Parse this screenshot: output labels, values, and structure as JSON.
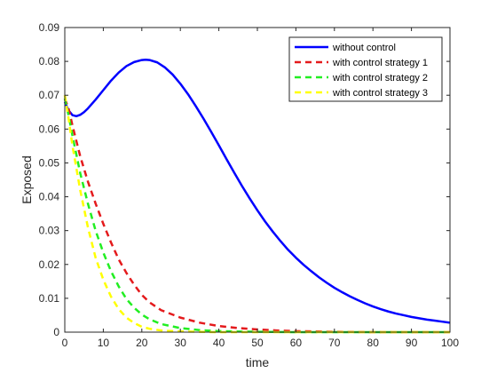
{
  "chart_data": {
    "type": "line",
    "xlabel": "time",
    "ylabel": "Exposed",
    "xlim": [
      0,
      100
    ],
    "ylim": [
      0,
      0.09
    ],
    "xticks": [
      0,
      10,
      20,
      30,
      40,
      50,
      60,
      70,
      80,
      90,
      100
    ],
    "yticks": [
      0,
      0.01,
      0.02,
      0.03,
      0.04,
      0.05,
      0.06,
      0.07,
      0.08,
      0.09
    ],
    "xtick_labels": [
      "0",
      "10",
      "20",
      "30",
      "40",
      "50",
      "60",
      "70",
      "80",
      "90",
      "100"
    ],
    "ytick_labels": [
      "0",
      "0.01",
      "0.02",
      "0.03",
      "0.04",
      "0.05",
      "0.06",
      "0.07",
      "0.08",
      "0.09"
    ],
    "grid": false,
    "legend_position": "top-right",
    "series": [
      {
        "name": "without control",
        "color": "#0000FF",
        "style": "solid",
        "x": [
          0,
          1,
          2,
          3,
          4,
          5,
          6,
          8,
          10,
          12,
          14,
          16,
          18,
          20,
          21,
          22,
          24,
          26,
          28,
          30,
          32,
          34,
          36,
          38,
          40,
          42,
          44,
          46,
          48,
          50,
          52,
          54,
          56,
          58,
          60,
          62,
          64,
          66,
          68,
          70,
          72,
          74,
          76,
          78,
          80,
          82,
          84,
          86,
          88,
          90,
          92,
          94,
          96,
          98,
          100
        ],
        "y": [
          0.068,
          0.0655,
          0.0641,
          0.0638,
          0.0642,
          0.065,
          0.0661,
          0.0687,
          0.0715,
          0.0743,
          0.0767,
          0.0786,
          0.0798,
          0.0804,
          0.0805,
          0.0804,
          0.0797,
          0.0782,
          0.0761,
          0.0734,
          0.0703,
          0.0668,
          0.0631,
          0.0592,
          0.0552,
          0.0511,
          0.0471,
          0.0432,
          0.0395,
          0.036,
          0.0327,
          0.0297,
          0.0269,
          0.0243,
          0.022,
          0.0199,
          0.018,
          0.0162,
          0.0146,
          0.0131,
          0.0118,
          0.0106,
          0.0095,
          0.0085,
          0.0076,
          0.0068,
          0.0061,
          0.0055,
          0.005,
          0.0045,
          0.0041,
          0.0037,
          0.0034,
          0.0031,
          0.0028
        ]
      },
      {
        "name": "with control strategy 1",
        "color": "#E41A1C",
        "style": "dashed",
        "x": [
          0,
          1,
          2,
          4,
          6,
          8,
          10,
          12,
          14,
          16,
          18,
          20,
          22,
          25,
          30,
          35,
          40,
          45,
          50,
          55,
          60,
          70,
          80,
          90,
          100
        ],
        "y": [
          0.069,
          0.066,
          0.061,
          0.052,
          0.0445,
          0.038,
          0.032,
          0.0265,
          0.0215,
          0.0175,
          0.014,
          0.011,
          0.0088,
          0.0065,
          0.0043,
          0.0028,
          0.0018,
          0.0012,
          0.0008,
          0.0005,
          0.0003,
          0.0001,
          0.0,
          0.0,
          0.0
        ]
      },
      {
        "name": "with control strategy 2",
        "color": "#22EE22",
        "style": "dashed",
        "x": [
          0,
          1,
          2,
          4,
          6,
          8,
          10,
          12,
          14,
          16,
          18,
          20,
          22,
          25,
          30,
          35,
          40,
          50,
          60,
          70,
          80,
          90,
          100
        ],
        "y": [
          0.069,
          0.064,
          0.058,
          0.047,
          0.038,
          0.03,
          0.0235,
          0.018,
          0.0135,
          0.0098,
          0.0072,
          0.0052,
          0.0038,
          0.0024,
          0.0012,
          0.0006,
          0.0003,
          0.0001,
          0.0,
          0.0,
          0.0,
          0.0,
          0.0
        ]
      },
      {
        "name": "with control strategy 3",
        "color": "#FFFF00",
        "style": "dashed",
        "x": [
          0,
          1,
          2,
          4,
          6,
          8,
          10,
          12,
          14,
          16,
          18,
          20,
          22,
          25,
          30,
          35,
          40,
          50,
          60,
          70,
          80,
          90,
          100
        ],
        "y": [
          0.07,
          0.063,
          0.055,
          0.042,
          0.031,
          0.022,
          0.0155,
          0.0105,
          0.0068,
          0.0043,
          0.0027,
          0.0016,
          0.001,
          0.0005,
          0.0002,
          0.0001,
          0.0,
          0.0,
          0.0,
          0.0,
          0.0,
          0.0,
          0.0
        ]
      }
    ]
  }
}
